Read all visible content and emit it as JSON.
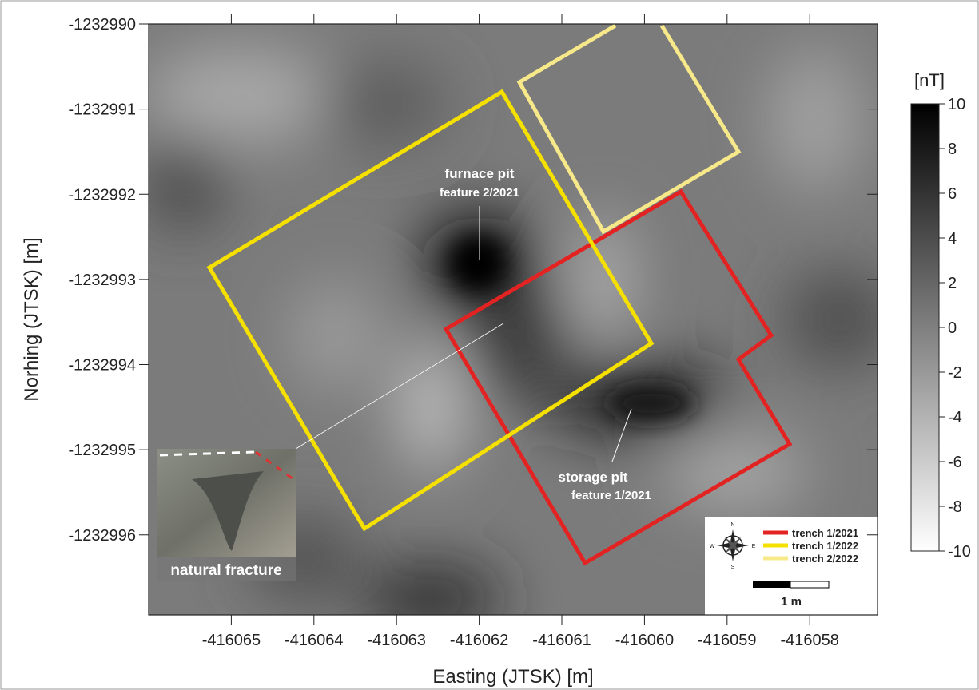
{
  "map": {
    "xlabel": "Easting (JTSK) [m]",
    "ylabel": "Norhing (JTSK) [m]",
    "xlim": [
      -416066,
      -416057.18
    ],
    "xticks": [
      -416065,
      -416064,
      -416063,
      -416062,
      -416061,
      -416060,
      -416059,
      -416058
    ],
    "ylim": [
      -1232996.94,
      -1232990
    ],
    "yticks": [
      -1232990,
      -1232991,
      -1232992,
      -1232993,
      -1232994,
      -1232995,
      -1232996
    ],
    "colorbar": {
      "label": "[nT]",
      "lim": [
        -10,
        10
      ],
      "ticks": [
        10,
        8,
        6,
        4,
        2,
        0,
        -2,
        -4,
        -6,
        -8,
        -10
      ]
    },
    "annotations": {
      "furnace": [
        "furnace pit",
        "feature 2/2021"
      ],
      "storage": [
        "storage pit",
        "feature 1/2021"
      ],
      "photo": "natural fracture"
    },
    "legend": [
      {
        "name": "trench 1/2021",
        "color": "#e32322"
      },
      {
        "name": "trench 1/2022",
        "color": "#f5e000"
      },
      {
        "name": "trench 2/2022",
        "color": "#f7e98a"
      }
    ],
    "compass": [
      "N",
      "S",
      "W",
      "E"
    ],
    "scale_label": "1 m"
  }
}
